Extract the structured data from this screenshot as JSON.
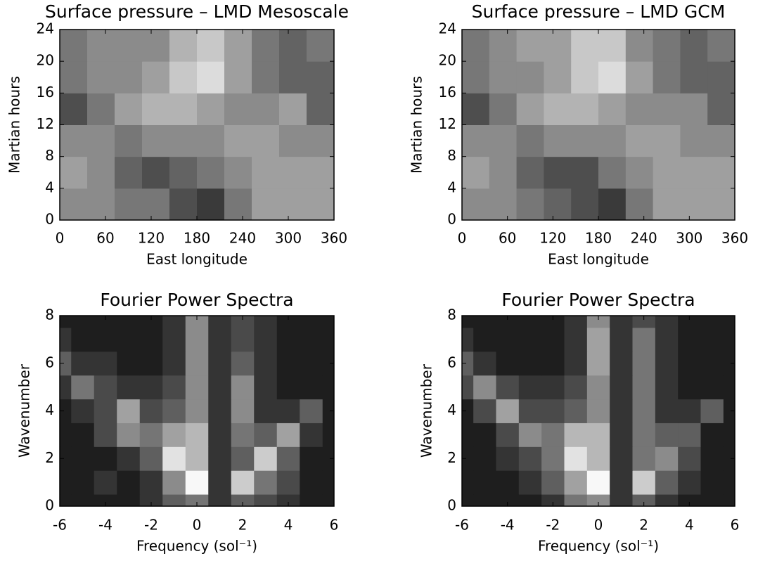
{
  "chart_data": [
    {
      "type": "heatmap",
      "title": "Surface pressure – LMD Mesoscale",
      "x_label": "East longitude",
      "y_label": "Martian hours",
      "xlim": [
        0,
        360
      ],
      "xticks": [
        0,
        60,
        120,
        180,
        240,
        300,
        360
      ],
      "ylim": [
        0,
        24
      ],
      "yticks": [
        0,
        4,
        8,
        12,
        16,
        20,
        24
      ],
      "x": [
        18,
        54,
        90,
        126,
        162,
        198,
        234,
        270,
        306,
        342
      ],
      "y": [
        2,
        6,
        10,
        14,
        18,
        22
      ],
      "zlim": [
        0,
        10
      ],
      "colormap": [
        "#262626",
        "#f0f0f0"
      ],
      "z": [
        [
          5,
          5,
          4,
          4,
          2,
          1,
          4,
          6,
          6,
          6
        ],
        [
          6,
          5,
          3,
          2,
          3,
          4,
          5,
          6,
          6,
          6
        ],
        [
          5,
          5,
          4,
          5,
          5,
          5,
          6,
          6,
          5,
          5
        ],
        [
          2,
          4,
          6,
          7,
          7,
          6,
          5,
          5,
          6,
          3
        ],
        [
          4,
          5,
          5,
          6,
          8,
          9,
          6,
          4,
          3,
          3
        ],
        [
          4,
          5,
          5,
          5,
          7,
          8,
          6,
          4,
          3,
          4
        ]
      ]
    },
    {
      "type": "heatmap",
      "title": "Surface pressure – LMD GCM",
      "x_label": "East longitude",
      "y_label": "Martian hours",
      "xlim": [
        0,
        360
      ],
      "xticks": [
        0,
        60,
        120,
        180,
        240,
        300,
        360
      ],
      "ylim": [
        0,
        24
      ],
      "yticks": [
        0,
        4,
        8,
        12,
        16,
        20,
        24
      ],
      "x": [
        18,
        54,
        90,
        126,
        162,
        198,
        234,
        270,
        306,
        342
      ],
      "y": [
        2,
        6,
        10,
        14,
        18,
        22
      ],
      "zlim": [
        0,
        10
      ],
      "colormap": [
        "#262626",
        "#f0f0f0"
      ],
      "z": [
        [
          5,
          5,
          4,
          3,
          2,
          1,
          4,
          6,
          6,
          6
        ],
        [
          6,
          5,
          3,
          2,
          2,
          4,
          5,
          6,
          6,
          6
        ],
        [
          5,
          5,
          4,
          5,
          5,
          5,
          6,
          6,
          5,
          5
        ],
        [
          2,
          4,
          6,
          7,
          7,
          6,
          5,
          5,
          5,
          3
        ],
        [
          4,
          5,
          5,
          6,
          8,
          9,
          6,
          4,
          3,
          3
        ],
        [
          4,
          5,
          6,
          6,
          8,
          8,
          5,
          4,
          3,
          4
        ]
      ]
    },
    {
      "type": "heatmap",
      "title": "Fourier Power Spectra",
      "x_label": "Frequency (sol⁻¹)",
      "y_label": "Wavenumber",
      "xlim": [
        -6,
        6
      ],
      "xticks": [
        -6,
        -4,
        -2,
        0,
        2,
        4,
        6
      ],
      "ylim": [
        0,
        8
      ],
      "yticks": [
        0,
        2,
        4,
        6,
        8
      ],
      "x": [
        -6,
        -5,
        -4,
        -3,
        -2,
        -1,
        0,
        1,
        2,
        3,
        4,
        5,
        6
      ],
      "y": [
        0,
        1,
        2,
        3,
        4,
        5,
        6,
        7,
        8
      ],
      "zlim": [
        0,
        10
      ],
      "colormap": [
        "#1e1e1e",
        "#f8f8f8"
      ],
      "z": [
        [
          0,
          0,
          0,
          0,
          1,
          3,
          4,
          1,
          3,
          2,
          1,
          0,
          0
        ],
        [
          0,
          0,
          1,
          0,
          1,
          5,
          10,
          1,
          8,
          4,
          2,
          0,
          0
        ],
        [
          0,
          0,
          0,
          1,
          3,
          9,
          7,
          1,
          3,
          8,
          3,
          0,
          0
        ],
        [
          0,
          0,
          2,
          5,
          4,
          6,
          7,
          1,
          4,
          3,
          6,
          1,
          0
        ],
        [
          0,
          1,
          2,
          6,
          2,
          3,
          5,
          1,
          5,
          1,
          1,
          3,
          0
        ],
        [
          1,
          4,
          2,
          1,
          1,
          2,
          5,
          1,
          5,
          1,
          0,
          0,
          0
        ],
        [
          3,
          1,
          1,
          0,
          0,
          1,
          5,
          1,
          3,
          1,
          0,
          0,
          0
        ],
        [
          1,
          0,
          0,
          0,
          0,
          1,
          5,
          1,
          2,
          1,
          0,
          0,
          0
        ],
        [
          0,
          0,
          0,
          0,
          0,
          1,
          5,
          1,
          2,
          1,
          0,
          0,
          0
        ]
      ]
    },
    {
      "type": "heatmap",
      "title": "Fourier Power Spectra",
      "x_label": "Frequency (sol⁻¹)",
      "y_label": "Wavenumber",
      "xlim": [
        -6,
        6
      ],
      "xticks": [
        -6,
        -4,
        -2,
        0,
        2,
        4,
        6
      ],
      "ylim": [
        0,
        8
      ],
      "yticks": [
        0,
        2,
        4,
        6,
        8
      ],
      "x": [
        -6,
        -5,
        -4,
        -3,
        -2,
        -1,
        0,
        1,
        2,
        3,
        4,
        5,
        6
      ],
      "y": [
        0,
        1,
        2,
        3,
        4,
        5,
        6,
        7,
        8
      ],
      "zlim": [
        0,
        10
      ],
      "colormap": [
        "#1e1e1e",
        "#f8f8f8"
      ],
      "z": [
        [
          0,
          0,
          0,
          0,
          1,
          4,
          5,
          1,
          3,
          1,
          0,
          0,
          0
        ],
        [
          0,
          0,
          0,
          1,
          3,
          6,
          10,
          1,
          8,
          3,
          1,
          0,
          0
        ],
        [
          0,
          0,
          1,
          2,
          4,
          9,
          7,
          1,
          4,
          5,
          2,
          0,
          0
        ],
        [
          0,
          0,
          2,
          5,
          4,
          7,
          7,
          1,
          4,
          3,
          3,
          0,
          0
        ],
        [
          0,
          2,
          6,
          2,
          2,
          3,
          5,
          1,
          4,
          1,
          1,
          3,
          0
        ],
        [
          2,
          5,
          2,
          1,
          1,
          2,
          5,
          1,
          4,
          1,
          0,
          0,
          0
        ],
        [
          3,
          1,
          0,
          0,
          0,
          1,
          6,
          1,
          4,
          1,
          0,
          0,
          0
        ],
        [
          1,
          0,
          0,
          0,
          0,
          1,
          6,
          1,
          4,
          1,
          0,
          0,
          0
        ],
        [
          0,
          0,
          0,
          0,
          0,
          1,
          5,
          1,
          2,
          1,
          0,
          0,
          0
        ]
      ]
    }
  ]
}
